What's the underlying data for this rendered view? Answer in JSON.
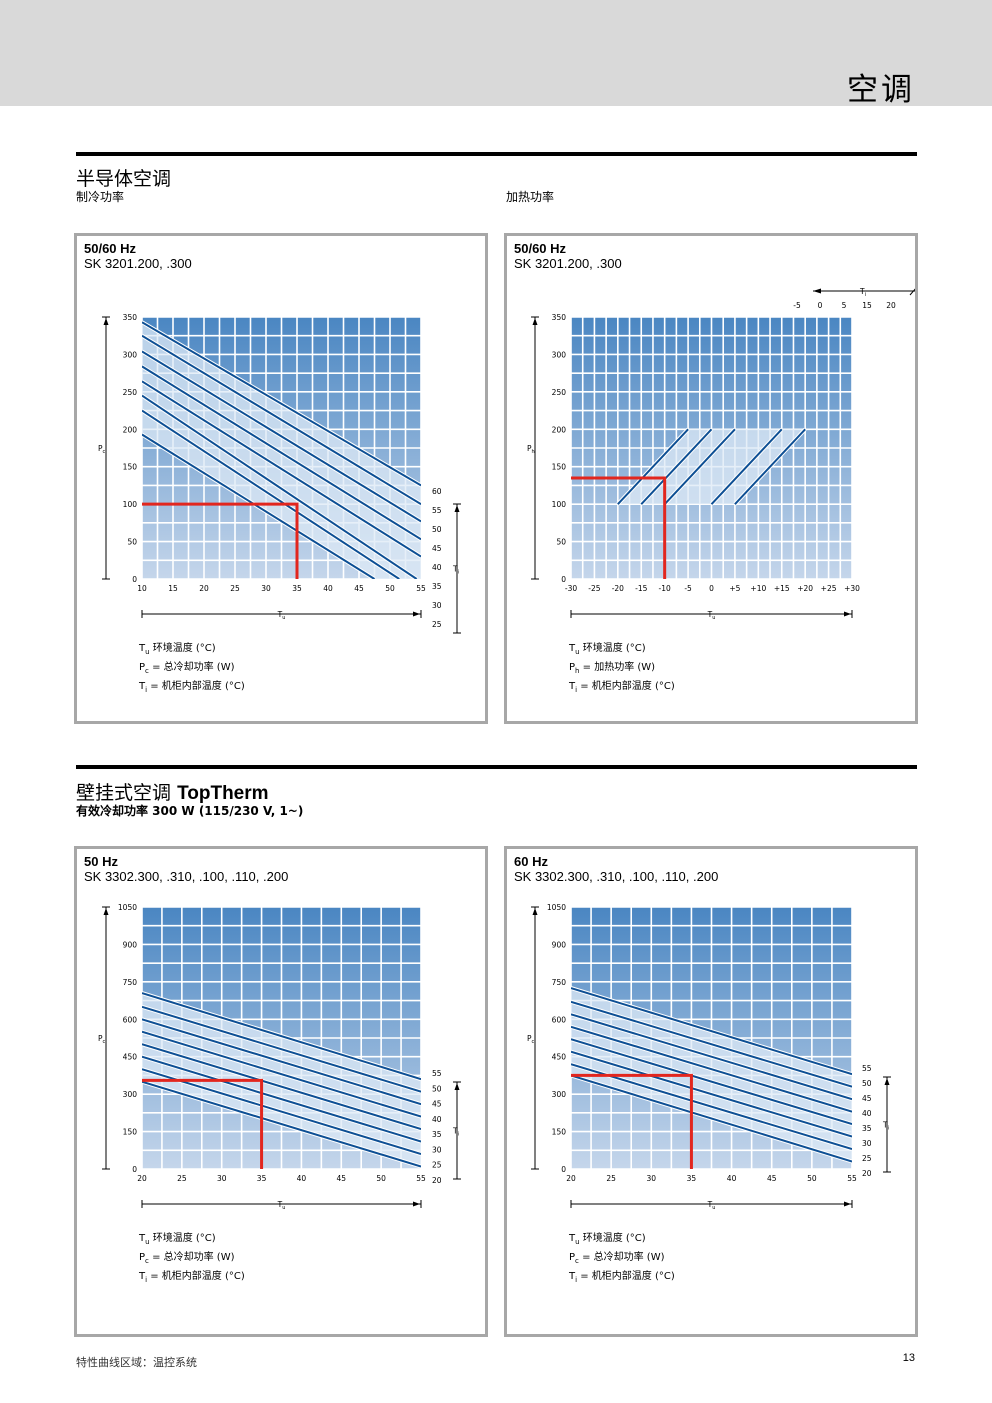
{
  "page_title": "空调",
  "sections": [
    {
      "title": "半导体空调",
      "subtitle_left": "制冷功率",
      "subtitle_right": "加热功率"
    },
    {
      "title": "壁挂式空调",
      "title_bold": "TopTherm",
      "subtitle_left": "有效冷却功率 300 W (115/230 V, 1~)"
    }
  ],
  "footer": {
    "left": "特性曲线区域：温控系统",
    "page_number": "13"
  },
  "colors": {
    "grid_top": "#4a86c2",
    "grid_bottom": "#c5d6eb",
    "curve": "#0d4f94",
    "band": "#dde9f5",
    "marker": "#e2261e",
    "panel_border": "#a7a7a7"
  },
  "chart_data": [
    {
      "type": "line",
      "panel_title": "50/60 Hz",
      "model": "SK 3201.200, .300",
      "x_axis_label": "Tu",
      "y_axis_label": "Pc",
      "param_label": "Ti",
      "x_ticks": [
        "10",
        "15",
        "20",
        "25",
        "30",
        "35",
        "40",
        "45",
        "50",
        "55"
      ],
      "y_ticks": [
        "0",
        "50",
        "100",
        "150",
        "200",
        "250",
        "300",
        "350"
      ],
      "xlim": [
        10,
        55
      ],
      "ylim": [
        0,
        350
      ],
      "param_ticks": [
        "60",
        "55",
        "50",
        "45",
        "40",
        "35",
        "30",
        "25"
      ],
      "series": [
        {
          "name": "25",
          "x": [
            10,
            55
          ],
          "y": [
            343,
            125
          ]
        },
        {
          "name": "30",
          "x": [
            10,
            55
          ],
          "y": [
            325,
            100
          ]
        },
        {
          "name": "35",
          "x": [
            10,
            55
          ],
          "y": [
            304,
            77
          ]
        },
        {
          "name": "40",
          "x": [
            10,
            55
          ],
          "y": [
            284,
            53
          ]
        },
        {
          "name": "45",
          "x": [
            10,
            55
          ],
          "y": [
            264,
            30
          ]
        },
        {
          "name": "50",
          "x": [
            10,
            54.3
          ],
          "y": [
            245,
            0
          ]
        },
        {
          "name": "55",
          "x": [
            10,
            51.5
          ],
          "y": [
            225,
            0
          ]
        },
        {
          "name": "60",
          "x": [
            10,
            47.5
          ],
          "y": [
            193,
            0
          ]
        }
      ],
      "example": {
        "x": 35,
        "y": 100
      },
      "legend": [
        {
          "sym": "T",
          "sub": "u",
          "text": " 环境温度 (°C)"
        },
        {
          "sym": "P",
          "sub": "c",
          "text": " = 总冷却功率 (W)"
        },
        {
          "sym": "T",
          "sub": "i",
          "text": "  = 机柜内部温度 (°C)"
        }
      ]
    },
    {
      "type": "line",
      "panel_title": "50/60 Hz",
      "model": "SK 3201.200, .300",
      "x_axis_label": "Tu",
      "y_axis_label": "Ph",
      "param_label": "Ti",
      "x_ticks": [
        "-30",
        "-25",
        "-20",
        "-15",
        "-10",
        "-5",
        "0",
        "+5",
        "+10",
        "+15",
        "+20",
        "+25",
        "+30"
      ],
      "y_ticks": [
        "0",
        "50",
        "100",
        "150",
        "200",
        "250",
        "300",
        "350"
      ],
      "xlim": [
        -30,
        30
      ],
      "ylim": [
        0,
        350
      ],
      "param_ticks": [
        "-5",
        "0",
        "5",
        "15",
        "20"
      ],
      "series": [
        {
          "name": "-5",
          "x": [
            -20,
            -5
          ],
          "y": [
            100,
            200
          ]
        },
        {
          "name": "0",
          "x": [
            -15,
            0
          ],
          "y": [
            100,
            200
          ]
        },
        {
          "name": "5",
          "x": [
            -10,
            5
          ],
          "y": [
            100,
            200
          ]
        },
        {
          "name": "15",
          "x": [
            0,
            15
          ],
          "y": [
            100,
            200
          ]
        },
        {
          "name": "20",
          "x": [
            5,
            20
          ],
          "y": [
            100,
            200
          ]
        }
      ],
      "example": {
        "x": -10,
        "y": 135
      },
      "legend": [
        {
          "sym": "T",
          "sub": "u",
          "text": " 环境温度 (°C)"
        },
        {
          "sym": "P",
          "sub": "h",
          "text": " = 加热功率 (W)"
        },
        {
          "sym": "T",
          "sub": "i",
          "text": "  = 机柜内部温度 (°C)"
        }
      ]
    },
    {
      "type": "line",
      "panel_title": "50 Hz",
      "model": "SK 3302.300, .310, .100, .110, .200",
      "x_axis_label": "Tu",
      "y_axis_label": "Pc",
      "param_label": "Ti",
      "x_ticks": [
        "20",
        "25",
        "30",
        "35",
        "40",
        "45",
        "50",
        "55"
      ],
      "y_ticks": [
        "0",
        "150",
        "300",
        "450",
        "600",
        "750",
        "900",
        "1050"
      ],
      "xlim": [
        20,
        55
      ],
      "ylim": [
        0,
        1050
      ],
      "param_ticks": [
        "55",
        "50",
        "45",
        "40",
        "35",
        "30",
        "25",
        "20"
      ],
      "series": [
        {
          "name": "20",
          "x": [
            20,
            55
          ],
          "y": [
            705,
            360
          ]
        },
        {
          "name": "25",
          "x": [
            20,
            55
          ],
          "y": [
            650,
            310
          ]
        },
        {
          "name": "30",
          "x": [
            20,
            55
          ],
          "y": [
            600,
            260
          ]
        },
        {
          "name": "35",
          "x": [
            20,
            55
          ],
          "y": [
            550,
            210
          ]
        },
        {
          "name": "40",
          "x": [
            20,
            55
          ],
          "y": [
            500,
            160
          ]
        },
        {
          "name": "45",
          "x": [
            20,
            55
          ],
          "y": [
            450,
            110
          ]
        },
        {
          "name": "50",
          "x": [
            20,
            55
          ],
          "y": [
            400,
            60
          ]
        },
        {
          "name": "55",
          "x": [
            20,
            55
          ],
          "y": [
            350,
            10
          ]
        }
      ],
      "example": {
        "x": 35,
        "y": 355
      },
      "legend": [
        {
          "sym": "T",
          "sub": "u",
          "text": " 环境温度 (°C)"
        },
        {
          "sym": "P",
          "sub": "c",
          "text": " = 总冷却功率 (W)"
        },
        {
          "sym": "T",
          "sub": "i",
          "text": "  = 机柜内部温度 (°C)"
        }
      ]
    },
    {
      "type": "line",
      "panel_title": "60 Hz",
      "model": "SK 3302.300, .310, .100, .110, .200",
      "x_axis_label": "Tu",
      "y_axis_label": "Pc",
      "param_label": "Ti",
      "x_ticks": [
        "20",
        "25",
        "30",
        "35",
        "40",
        "45",
        "50",
        "55"
      ],
      "y_ticks": [
        "0",
        "150",
        "300",
        "450",
        "600",
        "750",
        "900",
        "1050"
      ],
      "xlim": [
        20,
        55
      ],
      "ylim": [
        0,
        1050
      ],
      "param_ticks": [
        "55",
        "50",
        "45",
        "40",
        "35",
        "30",
        "25",
        "20"
      ],
      "series": [
        {
          "name": "20",
          "x": [
            20,
            55
          ],
          "y": [
            725,
            380
          ]
        },
        {
          "name": "25",
          "x": [
            20,
            55
          ],
          "y": [
            670,
            330
          ]
        },
        {
          "name": "30",
          "x": [
            20,
            55
          ],
          "y": [
            620,
            280
          ]
        },
        {
          "name": "35",
          "x": [
            20,
            55
          ],
          "y": [
            570,
            230
          ]
        },
        {
          "name": "40",
          "x": [
            20,
            55
          ],
          "y": [
            520,
            180
          ]
        },
        {
          "name": "45",
          "x": [
            20,
            55
          ],
          "y": [
            470,
            130
          ]
        },
        {
          "name": "50",
          "x": [
            20,
            55
          ],
          "y": [
            420,
            80
          ]
        },
        {
          "name": "55",
          "x": [
            20,
            55
          ],
          "y": [
            375,
            30
          ]
        }
      ],
      "example": {
        "x": 35,
        "y": 375
      },
      "legend": [
        {
          "sym": "T",
          "sub": "u",
          "text": " 环境温度 (°C)"
        },
        {
          "sym": "P",
          "sub": "c",
          "text": " = 总冷却功率 (W)"
        },
        {
          "sym": "T",
          "sub": "i",
          "text": "  = 机柜内部温度 (°C)"
        }
      ]
    }
  ]
}
